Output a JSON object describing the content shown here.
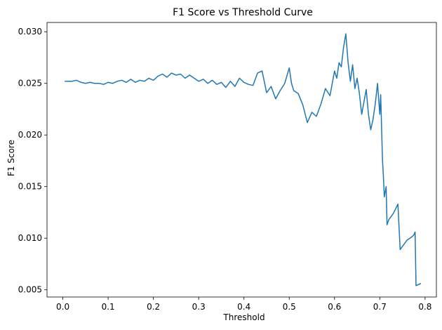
{
  "chart_data": {
    "type": "line",
    "title": "F1 Score vs Threshold Curve",
    "xlabel": "Threshold",
    "ylabel": "F1 Score",
    "xlim": [
      -0.035,
      0.825
    ],
    "ylim": [
      0.0043,
      0.0309
    ],
    "x_ticks": [
      0.0,
      0.1,
      0.2,
      0.3,
      0.4,
      0.5,
      0.6,
      0.7,
      0.8
    ],
    "x_tick_labels": [
      "0.0",
      "0.1",
      "0.2",
      "0.3",
      "0.4",
      "0.5",
      "0.6",
      "0.7",
      "0.8"
    ],
    "y_ticks": [
      0.005,
      0.01,
      0.015,
      0.02,
      0.025,
      0.03
    ],
    "y_tick_labels": [
      "0.005",
      "0.010",
      "0.015",
      "0.020",
      "0.025",
      "0.030"
    ],
    "grid": false,
    "series": [
      {
        "color": "#1f77b4",
        "x": [
          0.005,
          0.02,
          0.03,
          0.04,
          0.05,
          0.06,
          0.07,
          0.08,
          0.09,
          0.1,
          0.11,
          0.12,
          0.13,
          0.14,
          0.15,
          0.16,
          0.17,
          0.18,
          0.19,
          0.2,
          0.21,
          0.22,
          0.23,
          0.24,
          0.25,
          0.26,
          0.27,
          0.28,
          0.29,
          0.3,
          0.31,
          0.32,
          0.33,
          0.34,
          0.35,
          0.36,
          0.37,
          0.38,
          0.39,
          0.4,
          0.41,
          0.42,
          0.43,
          0.44,
          0.45,
          0.46,
          0.47,
          0.48,
          0.49,
          0.5,
          0.505,
          0.51,
          0.52,
          0.53,
          0.54,
          0.55,
          0.56,
          0.57,
          0.58,
          0.59,
          0.6,
          0.605,
          0.61,
          0.615,
          0.62,
          0.625,
          0.63,
          0.635,
          0.64,
          0.645,
          0.65,
          0.655,
          0.66,
          0.665,
          0.67,
          0.675,
          0.68,
          0.685,
          0.69,
          0.695,
          0.7,
          0.702,
          0.704,
          0.706,
          0.708,
          0.71,
          0.712,
          0.714,
          0.716,
          0.72,
          0.73,
          0.74,
          0.745,
          0.75,
          0.76,
          0.77,
          0.775,
          0.778,
          0.78,
          0.79
        ],
        "y": [
          0.0252,
          0.0252,
          0.0253,
          0.0251,
          0.025,
          0.0251,
          0.025,
          0.025,
          0.0249,
          0.0251,
          0.025,
          0.0252,
          0.0253,
          0.0251,
          0.0254,
          0.0251,
          0.0253,
          0.0252,
          0.0255,
          0.0253,
          0.0257,
          0.0259,
          0.0256,
          0.026,
          0.0258,
          0.0259,
          0.0255,
          0.0258,
          0.0255,
          0.0252,
          0.0254,
          0.025,
          0.0253,
          0.0249,
          0.0251,
          0.0246,
          0.0252,
          0.0247,
          0.0255,
          0.0251,
          0.0249,
          0.0248,
          0.026,
          0.0262,
          0.0241,
          0.0247,
          0.0235,
          0.0243,
          0.025,
          0.0265,
          0.025,
          0.0243,
          0.024,
          0.0229,
          0.0212,
          0.0222,
          0.0218,
          0.023,
          0.0245,
          0.0238,
          0.0262,
          0.0255,
          0.027,
          0.0266,
          0.0285,
          0.0298,
          0.027,
          0.0252,
          0.0268,
          0.0245,
          0.0255,
          0.024,
          0.022,
          0.0232,
          0.0244,
          0.022,
          0.0205,
          0.0215,
          0.023,
          0.025,
          0.022,
          0.0239,
          0.0206,
          0.0175,
          0.016,
          0.014,
          0.0145,
          0.015,
          0.0113,
          0.0118,
          0.0124,
          0.0133,
          0.0089,
          0.0092,
          0.0098,
          0.0101,
          0.0103,
          0.0106,
          0.0054,
          0.0056
        ]
      }
    ]
  }
}
